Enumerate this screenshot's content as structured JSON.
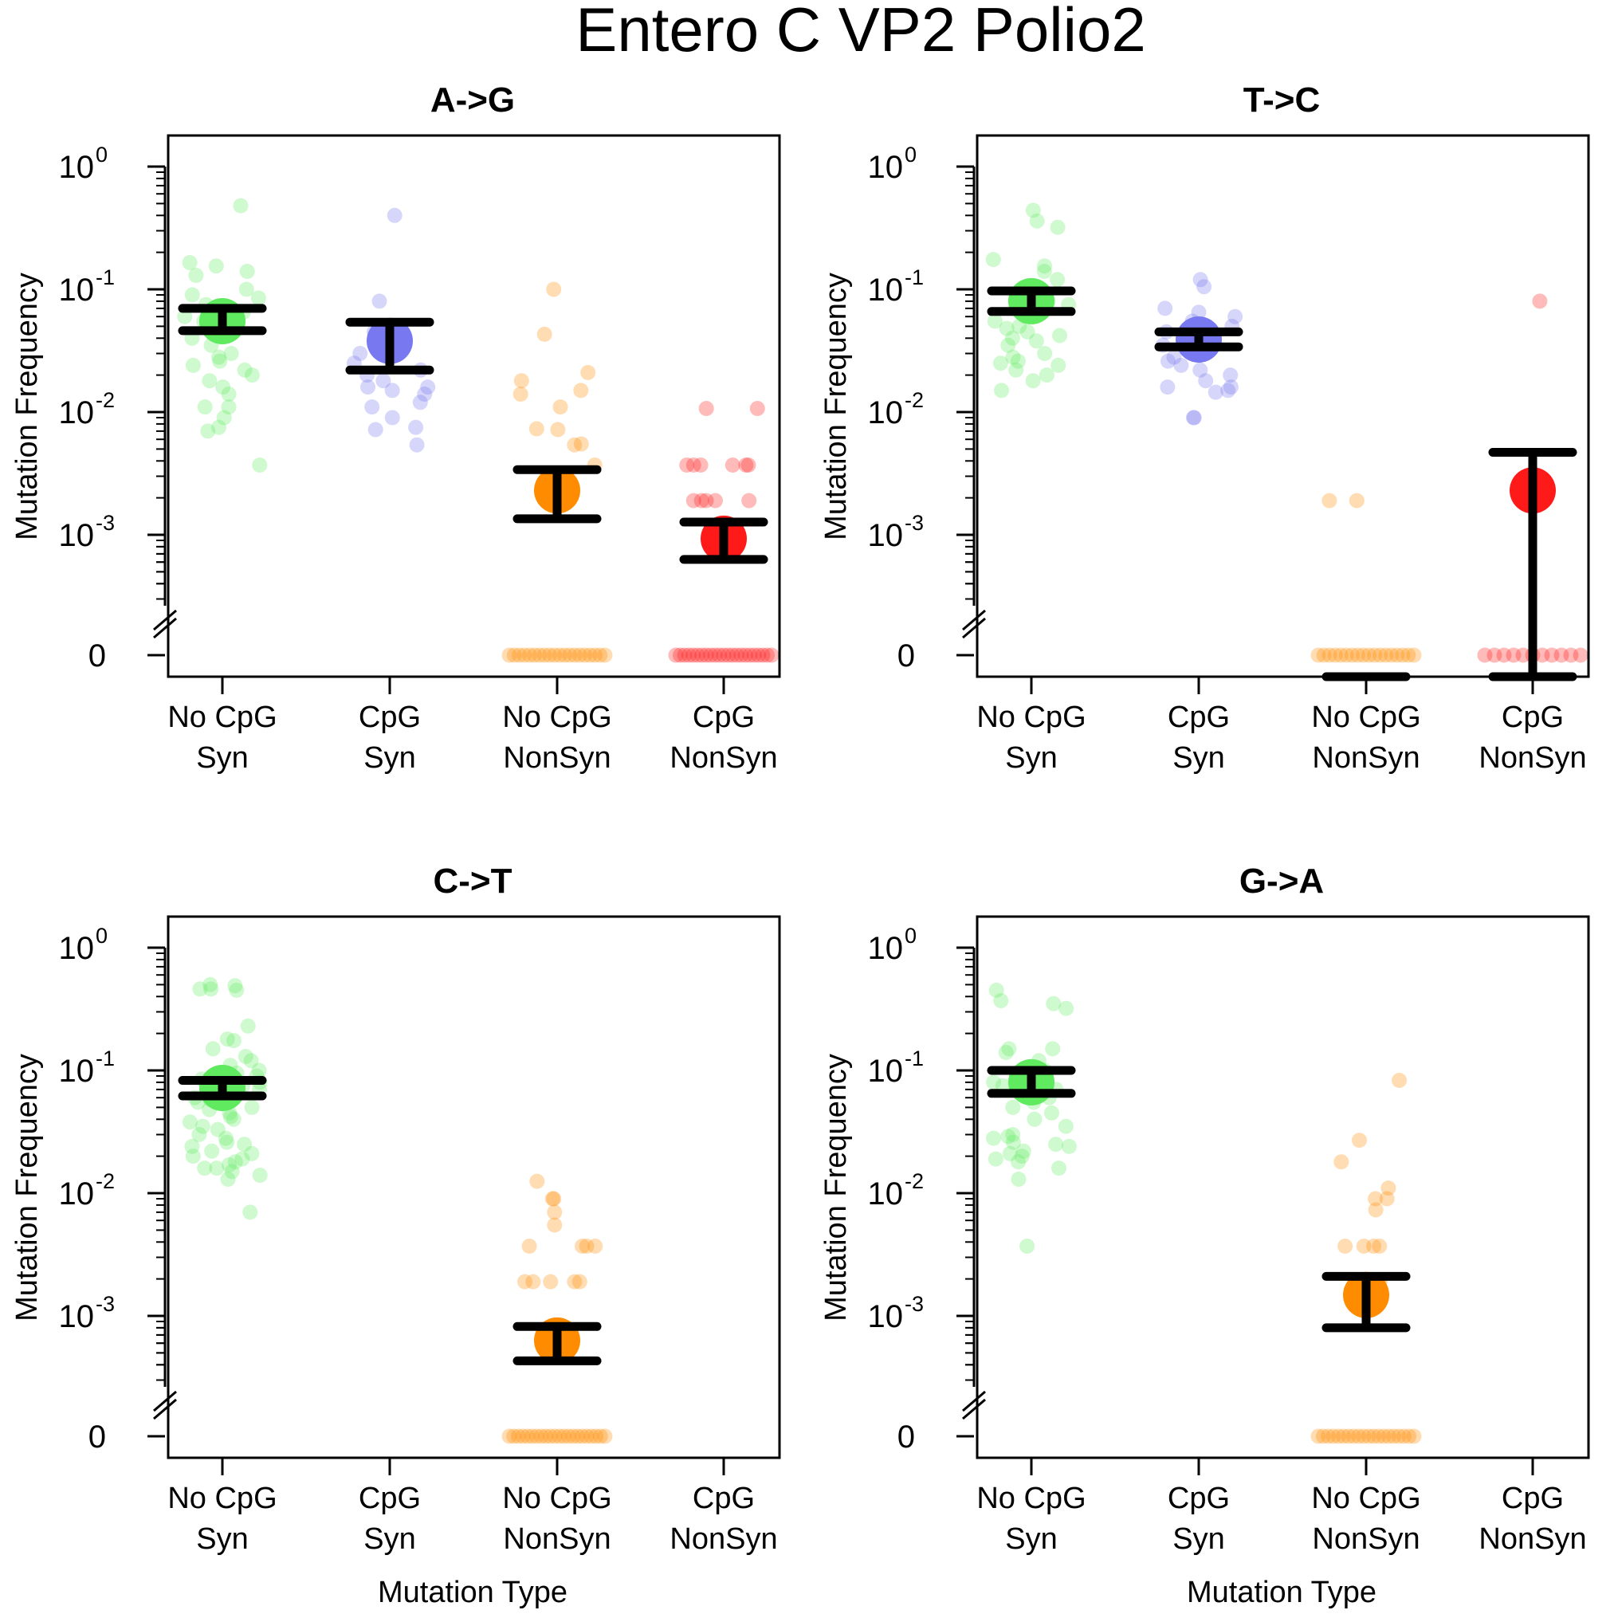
{
  "figure": {
    "title": "Entero C VP2 Polio2",
    "xlabel": "Mutation Type",
    "ylabel": "Mutation Frequency"
  },
  "colors": {
    "no_cpg_syn": "#5fea5f",
    "cpg_syn": "#7878f0",
    "no_cpg_nonsyn": "#ff8c00",
    "cpg_nonsyn": "#ff1a1a",
    "error_bar": "#000000"
  },
  "chart_data": [
    {
      "type": "scatter",
      "title": "A->G",
      "xlabel": "",
      "ylabel": "Mutation Frequency",
      "yscale": "log",
      "ylim": [
        0.0001,
        1
      ],
      "y_ticks": [
        {
          "base": "10",
          "exp": "0"
        },
        {
          "base": "10",
          "exp": "-1"
        },
        {
          "base": "10",
          "exp": "-2"
        },
        {
          "base": "10",
          "exp": "-3"
        },
        {
          "base": "0",
          "exp": ""
        }
      ],
      "categories": [
        "No CpG\nSyn",
        "CpG\nSyn",
        "No CpG\nNonSyn",
        "CpG\nNonSyn"
      ],
      "series": [
        {
          "mean": 0.055,
          "err_low": 0.046,
          "err_high": 0.07,
          "points": [
            0.48,
            0.165,
            0.155,
            0.14,
            0.13,
            0.1,
            0.09,
            0.085,
            0.075,
            0.065,
            0.06,
            0.055,
            0.05,
            0.045,
            0.04,
            0.035,
            0.03,
            0.028,
            0.026,
            0.024,
            0.022,
            0.02,
            0.018,
            0.016,
            0.014,
            0.011,
            0.011,
            0.009,
            0.0075,
            0.007,
            0.0037
          ]
        },
        {
          "mean": 0.038,
          "err_low": 0.022,
          "err_high": 0.054,
          "points": [
            0.4,
            0.08,
            0.045,
            0.035,
            0.03,
            0.025,
            0.022,
            0.02,
            0.018,
            0.016,
            0.016,
            0.015,
            0.014,
            0.012,
            0.011,
            0.009,
            0.0075,
            0.0072,
            0.0054
          ]
        },
        {
          "mean": 0.0023,
          "err_low": 0.00135,
          "err_high": 0.0034,
          "points": [
            0.1,
            0.043,
            0.021,
            0.018,
            0.015,
            0.014,
            0.011,
            0.0073,
            0.0072,
            0.0055,
            0.0054,
            0.0037,
            0.0019,
            0,
            0,
            0,
            0,
            0,
            0,
            0,
            0,
            0,
            0,
            0,
            0,
            0,
            0,
            0,
            0,
            0,
            0,
            0,
            0
          ]
        },
        {
          "mean": 0.00093,
          "err_low": 0.00063,
          "err_high": 0.00127,
          "points": [
            0.0107,
            0.0107,
            0.0037,
            0.0037,
            0.0037,
            0.0037,
            0.0037,
            0.0037,
            0.0019,
            0.0019,
            0.0019,
            0.0019,
            0.0019,
            0,
            0,
            0,
            0,
            0,
            0,
            0,
            0,
            0,
            0,
            0,
            0,
            0,
            0,
            0,
            0,
            0,
            0,
            0,
            0,
            0,
            0,
            0
          ]
        }
      ]
    },
    {
      "type": "scatter",
      "title": "T->C",
      "xlabel": "",
      "ylabel": "Mutation Frequency",
      "yscale": "log",
      "ylim": [
        0.0001,
        1
      ],
      "y_ticks": [
        {
          "base": "10",
          "exp": "0"
        },
        {
          "base": "10",
          "exp": "-1"
        },
        {
          "base": "10",
          "exp": "-2"
        },
        {
          "base": "10",
          "exp": "-3"
        },
        {
          "base": "0",
          "exp": ""
        }
      ],
      "categories": [
        "No CpG\nSyn",
        "CpG\nSyn",
        "No CpG\nNonSyn",
        "CpG\nNonSyn"
      ],
      "series": [
        {
          "mean": 0.08,
          "err_low": 0.066,
          "err_high": 0.097,
          "points": [
            0.44,
            0.36,
            0.32,
            0.175,
            0.155,
            0.14,
            0.12,
            0.1,
            0.09,
            0.08,
            0.075,
            0.07,
            0.065,
            0.06,
            0.055,
            0.05,
            0.048,
            0.045,
            0.042,
            0.04,
            0.038,
            0.035,
            0.03,
            0.028,
            0.026,
            0.025,
            0.024,
            0.022,
            0.02,
            0.018,
            0.015
          ]
        },
        {
          "mean": 0.039,
          "err_low": 0.034,
          "err_high": 0.045,
          "points": [
            0.12,
            0.105,
            0.07,
            0.065,
            0.06,
            0.055,
            0.05,
            0.045,
            0.04,
            0.035,
            0.03,
            0.028,
            0.026,
            0.024,
            0.022,
            0.02,
            0.018,
            0.016,
            0.016,
            0.015,
            0.0145,
            0.009,
            0.009
          ]
        },
        {
          "mean": 0,
          "err_low": 0,
          "err_high": 0,
          "points": [
            0.0019,
            0.0019,
            0,
            0,
            0,
            0,
            0,
            0,
            0,
            0,
            0,
            0,
            0,
            0,
            0,
            0,
            0,
            0,
            0,
            0
          ]
        },
        {
          "mean": 0.0023,
          "err_low": 0,
          "err_high": 0.0047,
          "points": [
            0.08,
            0,
            0,
            0,
            0,
            0,
            0,
            0,
            0,
            0,
            0,
            0
          ]
        }
      ]
    },
    {
      "type": "scatter",
      "title": "C->T",
      "xlabel": "Mutation Type",
      "ylabel": "Mutation Frequency",
      "yscale": "log",
      "ylim": [
        0.0001,
        1
      ],
      "y_ticks": [
        {
          "base": "10",
          "exp": "0"
        },
        {
          "base": "10",
          "exp": "-1"
        },
        {
          "base": "10",
          "exp": "-2"
        },
        {
          "base": "10",
          "exp": "-3"
        },
        {
          "base": "0",
          "exp": ""
        }
      ],
      "categories": [
        "No CpG\nSyn",
        "CpG\nSyn",
        "No CpG\nNonSyn",
        "CpG\nNonSyn"
      ],
      "series": [
        {
          "mean": 0.072,
          "err_low": 0.062,
          "err_high": 0.083,
          "points": [
            0.5,
            0.49,
            0.46,
            0.46,
            0.45,
            0.23,
            0.18,
            0.175,
            0.15,
            0.13,
            0.12,
            0.11,
            0.1,
            0.095,
            0.09,
            0.085,
            0.08,
            0.075,
            0.07,
            0.065,
            0.06,
            0.058,
            0.055,
            0.05,
            0.048,
            0.045,
            0.042,
            0.04,
            0.038,
            0.035,
            0.033,
            0.03,
            0.028,
            0.026,
            0.025,
            0.024,
            0.022,
            0.021,
            0.02,
            0.019,
            0.018,
            0.017,
            0.016,
            0.016,
            0.015,
            0.014,
            0.013,
            0.007
          ]
        },
        {
          "mean": 0,
          "err_low": 0,
          "err_high": 0,
          "points": []
        },
        {
          "mean": 0.00063,
          "err_low": 0.00043,
          "err_high": 0.00082,
          "points": [
            0.0125,
            0.009,
            0.009,
            0.007,
            0.0055,
            0.0037,
            0.0037,
            0.0037,
            0.0037,
            0.0019,
            0.0019,
            0.0019,
            0.0019,
            0.0019,
            0,
            0,
            0,
            0,
            0,
            0,
            0,
            0,
            0,
            0,
            0,
            0,
            0,
            0,
            0,
            0,
            0,
            0,
            0,
            0,
            0,
            0
          ]
        },
        {
          "mean": 0,
          "err_low": 0,
          "err_high": 0,
          "points": []
        }
      ]
    },
    {
      "type": "scatter",
      "title": "G->A",
      "xlabel": "Mutation Type",
      "ylabel": "Mutation Frequency",
      "yscale": "log",
      "ylim": [
        0.0001,
        1
      ],
      "y_ticks": [
        {
          "base": "10",
          "exp": "0"
        },
        {
          "base": "10",
          "exp": "-1"
        },
        {
          "base": "10",
          "exp": "-2"
        },
        {
          "base": "10",
          "exp": "-3"
        },
        {
          "base": "0",
          "exp": ""
        }
      ],
      "categories": [
        "No CpG\nSyn",
        "CpG\nSyn",
        "No CpG\nNonSyn",
        "CpG\nNonSyn"
      ],
      "series": [
        {
          "mean": 0.08,
          "err_low": 0.065,
          "err_high": 0.1,
          "points": [
            0.45,
            0.37,
            0.35,
            0.32,
            0.15,
            0.15,
            0.14,
            0.12,
            0.1,
            0.09,
            0.08,
            0.075,
            0.07,
            0.06,
            0.055,
            0.05,
            0.045,
            0.04,
            0.035,
            0.03,
            0.029,
            0.028,
            0.026,
            0.025,
            0.024,
            0.022,
            0.021,
            0.02,
            0.019,
            0.018,
            0.016,
            0.013,
            0.0037
          ]
        },
        {
          "mean": 0,
          "err_low": 0,
          "err_high": 0,
          "points": []
        },
        {
          "mean": 0.00148,
          "err_low": 0.0008,
          "err_high": 0.0021,
          "points": [
            0.083,
            0.027,
            0.018,
            0.011,
            0.009,
            0.009,
            0.0073,
            0.0037,
            0.0037,
            0.0037,
            0.0037,
            0.0019,
            0.0019,
            0,
            0,
            0,
            0,
            0,
            0,
            0,
            0,
            0,
            0,
            0,
            0,
            0,
            0,
            0,
            0,
            0,
            0,
            0,
            0
          ]
        },
        {
          "mean": 0,
          "err_low": 0,
          "err_high": 0,
          "points": []
        }
      ]
    }
  ]
}
